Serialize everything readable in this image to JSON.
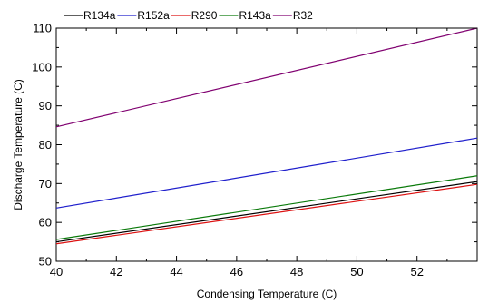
{
  "chart_data": {
    "type": "line",
    "xlabel": "Condensing Temperature (C)",
    "ylabel": "Discharge Temperature (C)",
    "xlim": [
      40,
      54
    ],
    "ylim": [
      50,
      110
    ],
    "x_ticks": [
      40,
      42,
      44,
      46,
      48,
      50,
      52
    ],
    "x_tick_labels": [
      "40",
      "42",
      "44",
      "46",
      "48",
      "50",
      "52"
    ],
    "y_ticks": [
      50,
      60,
      70,
      80,
      90,
      100,
      110
    ],
    "y_tick_labels": [
      "50",
      "60",
      "70",
      "80",
      "90",
      "100",
      "110"
    ],
    "legend_position": "top",
    "grid": false,
    "series": [
      {
        "name": "R134a",
        "color": "#000000",
        "x": [
          40,
          54
        ],
        "y": [
          55.0,
          70.5
        ]
      },
      {
        "name": "R152a",
        "color": "#1f1fcc",
        "x": [
          40,
          54
        ],
        "y": [
          63.7,
          81.7
        ]
      },
      {
        "name": "R290",
        "color": "#dd1111",
        "x": [
          40,
          54
        ],
        "y": [
          54.5,
          69.8
        ]
      },
      {
        "name": "R143a",
        "color": "#0a7a0a",
        "x": [
          40,
          54
        ],
        "y": [
          55.6,
          72.0
        ]
      },
      {
        "name": "R32",
        "color": "#800070",
        "x": [
          40,
          54
        ],
        "y": [
          84.6,
          110.0
        ]
      }
    ]
  }
}
